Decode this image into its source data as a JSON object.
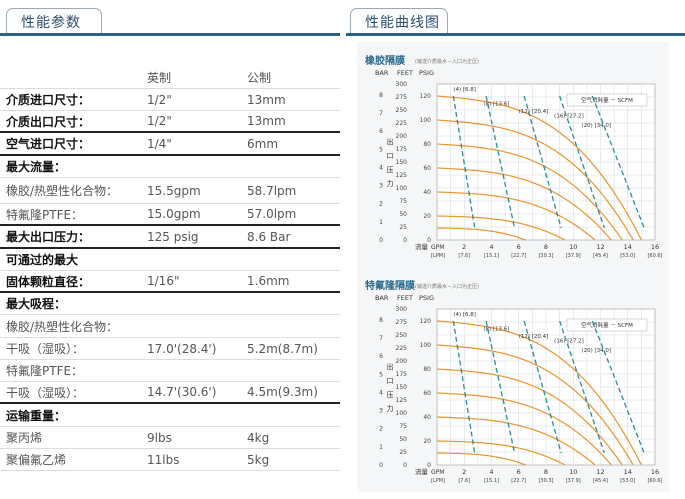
{
  "tabs": {
    "left": "性能参数",
    "right": "性能曲线图"
  },
  "specs": {
    "header": {
      "imperial": "英制",
      "metric": "公制"
    },
    "rows": [
      {
        "label": "介质进口尺寸：",
        "imperial": "1/2\"",
        "metric": "13mm",
        "bold": true,
        "thick": false
      },
      {
        "label": "介质出口尺寸：",
        "imperial": "1/2\"",
        "metric": "13mm",
        "bold": true,
        "thick": true
      },
      {
        "label": "空气进口尺寸：",
        "imperial": "1/4\"",
        "metric": "6mm",
        "bold": true,
        "thick": true
      },
      {
        "label": "最大流量：",
        "imperial": "",
        "metric": "",
        "bold": true,
        "thick": false
      },
      {
        "label": "橡胶/热塑性化合物：",
        "imperial": "15.5gpm",
        "metric": "58.7lpm",
        "bold": false,
        "thick": false
      },
      {
        "label": "特氟隆PTFE：",
        "imperial": "15.0gpm",
        "metric": "57.0lpm",
        "bold": false,
        "thick": true
      },
      {
        "label": "最大出口压力：",
        "imperial": "125 psig",
        "metric": "8.6 Bar",
        "bold": true,
        "thick": true
      },
      {
        "label": "可通过的最大",
        "imperial": "",
        "metric": "",
        "bold": true,
        "thick": false
      },
      {
        "label": "固体颗粒直径：",
        "imperial": "1/16\"",
        "metric": "1.6mm",
        "bold": true,
        "thick": true
      },
      {
        "label": "最大吸程：",
        "imperial": "",
        "metric": "",
        "bold": true,
        "thick": false
      },
      {
        "label": "橡胶/热塑性化合物：",
        "imperial": "",
        "metric": "",
        "bold": false,
        "thick": false
      },
      {
        "label": "干吸（湿吸）：",
        "imperial": "17.0'(28.4')",
        "metric": "5.2m(8.7m)",
        "bold": false,
        "thick": false
      },
      {
        "label": "特氟隆PTFE：",
        "imperial": "",
        "metric": "",
        "bold": false,
        "thick": false
      },
      {
        "label": "干吸（湿吸）：",
        "imperial": "14.7'(30.6')",
        "metric": "4.5m(9.3m)",
        "bold": false,
        "thick": true
      },
      {
        "label": "运输重量：",
        "imperial": "",
        "metric": "",
        "bold": true,
        "thick": false
      },
      {
        "label": "聚丙烯",
        "imperial": "9lbs",
        "metric": "4kg",
        "bold": false,
        "thick": false
      },
      {
        "label": "聚偏氟乙烯",
        "imperial": "11lbs",
        "metric": "5kg",
        "bold": false,
        "thick": false
      }
    ]
  },
  "charts": {
    "axis": {
      "bar_label": "BAR",
      "feet_label": "FEET",
      "psig_label": "PSIG",
      "ylabel": "出口压力",
      "xlabel": "流量",
      "gpm_label": "GPM",
      "lpm_label": "[LPM]",
      "gpm_ticks": [
        "2",
        "4",
        "6",
        "8",
        "10",
        "12",
        "14",
        "16"
      ],
      "lpm_ticks": [
        "[7.6]",
        "[15.1]",
        "[22.7]",
        "[30.3]",
        "[37.9]",
        "[45.4]",
        "[53.0]",
        "[60.6]"
      ],
      "bar_ticks": [
        "8",
        "7",
        "6",
        "5",
        "4",
        "3",
        "2",
        "1",
        "0"
      ],
      "feet_ticks": [
        "300",
        "275",
        "250",
        "225",
        "200",
        "175",
        "150",
        "125",
        "100",
        "75",
        "50",
        "25",
        "0"
      ],
      "psig_ticks": [
        "120",
        "100",
        "80",
        "60",
        "40",
        "20",
        "0"
      ],
      "air_legend": "空气消耗量 － SCFM"
    },
    "rubber": {
      "title": "橡胶隔膜",
      "subtitle": "(输送介质最水－入口为正压)",
      "air_labels": [
        "(4) [6.8]",
        "(8) [13.6]",
        "(12) [20.4]",
        "(16) [27.2]",
        "(20) [34.0]"
      ]
    },
    "ptfe": {
      "title": "特氟隆隔膜",
      "subtitle": "(输送介质最水－入口为正压)",
      "air_labels": [
        "(4) [6.8]",
        "(8) [13.6]",
        "(12) [20.4]",
        "(16) [27.2]",
        "(20) [34.0]"
      ]
    },
    "colors": {
      "pressure_curve": "#e8952e",
      "air_curve": "#2a8a9a",
      "title": "#2b6a8f",
      "grid": "#d0d8dd"
    }
  }
}
